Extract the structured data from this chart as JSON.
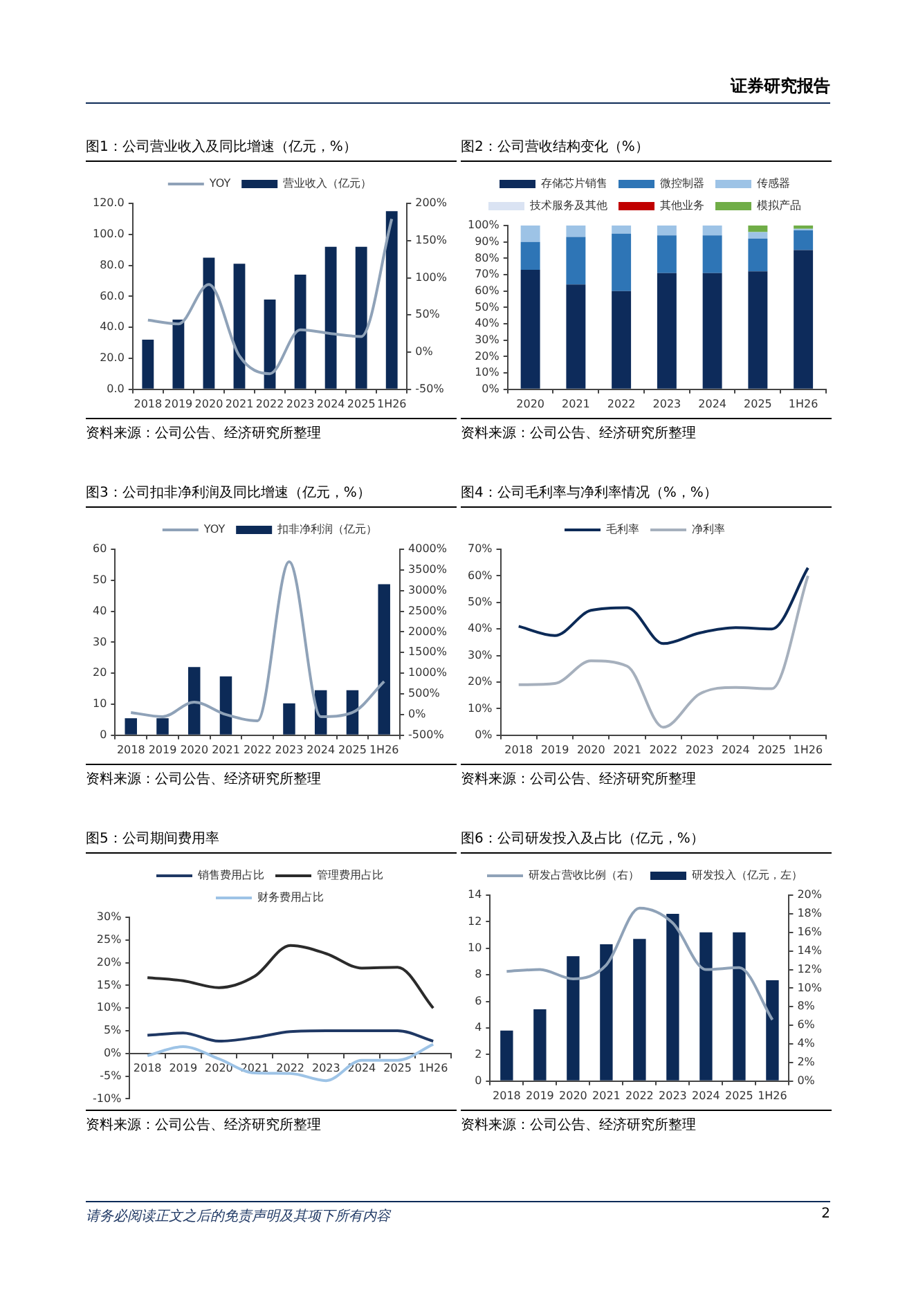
{
  "chart_data": [
    {
      "type": "bar",
      "title": "图1：公司营业收入及同比增速（亿元，%）",
      "annotations": [
        "资料来源：公司公告、经济研究所整理",
        "证券研究报告"
      ],
      "categories": [
        "2018",
        "2019",
        "2020",
        "2021",
        "2022",
        "2023",
        "2024",
        "2025",
        "1H26"
      ],
      "series": [
        {
          "name": "营业收入（亿元）",
          "color": "#0c2a57",
          "values": [
            32,
            45,
            85,
            81,
            58,
            74,
            92,
            92,
            115
          ]
        },
        {
          "name": "YOY",
          "type": "line",
          "axis": "y2",
          "color": "#8fa2b8",
          "values": [
            43,
            38,
            91,
            -5,
            -29,
            30,
            25,
            21,
            179
          ]
        }
      ],
      "ylim": [
        0,
        120
      ],
      "yticks": [
        {
          "value": 0,
          "label": "0.0"
        },
        {
          "value": 20,
          "label": "20.0"
        },
        {
          "value": 40,
          "label": "40.0"
        },
        {
          "value": 60,
          "label": "60.0"
        },
        {
          "value": 80,
          "label": "80.0"
        },
        {
          "value": 100,
          "label": "100.0"
        },
        {
          "value": 120,
          "label": "120.0"
        }
      ],
      "y2lim": [
        -50,
        200
      ],
      "y2ticks": [
        {
          "value": -50,
          "label": "-50%"
        },
        {
          "value": 0,
          "label": "0%"
        },
        {
          "value": 50,
          "label": "50%"
        },
        {
          "value": 100,
          "label": "100%"
        },
        {
          "value": 150,
          "label": "150%"
        },
        {
          "value": 200,
          "label": "200%"
        }
      ],
      "legend": "top",
      "grid": false,
      "marker": "none",
      "line_style": "solid"
    },
    {
      "type": "bar",
      "title": "图2：公司营收结构变化（%）",
      "annotations": [
        "资料来源：公司公告、经济研究所整理"
      ],
      "categories": [
        "2020",
        "2021",
        "2022",
        "2023",
        "2024",
        "2025",
        "1H26"
      ],
      "stacked": true,
      "series": [
        {
          "name": "存储芯片销售",
          "color": "#0d2b5b",
          "values": [
            73,
            64,
            60,
            71,
            71,
            72,
            85
          ]
        },
        {
          "name": "微控制器",
          "color": "#2e75b6",
          "values": [
            17,
            29,
            35,
            23,
            23,
            20,
            12
          ]
        },
        {
          "name": "传感器",
          "color": "#9dc3e6",
          "values": [
            10,
            7,
            5,
            6,
            6,
            4,
            1
          ]
        },
        {
          "name": "技术服务及其他",
          "color": "#dae3f3",
          "values": [
            0,
            0,
            0,
            0,
            0,
            0,
            0
          ]
        },
        {
          "name": "其他业务",
          "color": "#c00000",
          "values": [
            0,
            0,
            0,
            0,
            0,
            0,
            0
          ]
        },
        {
          "name": "模拟产品",
          "color": "#70ad47",
          "values": [
            0,
            0,
            0,
            0,
            0,
            4,
            2
          ]
        }
      ],
      "ylim": [
        0,
        100
      ],
      "yticks": [
        {
          "value": 0,
          "label": "0%"
        },
        {
          "value": 10,
          "label": "10%"
        },
        {
          "value": 20,
          "label": "20%"
        },
        {
          "value": 30,
          "label": "30%"
        },
        {
          "value": 40,
          "label": "40%"
        },
        {
          "value": 50,
          "label": "50%"
        },
        {
          "value": 60,
          "label": "60%"
        },
        {
          "value": 70,
          "label": "70%"
        },
        {
          "value": 80,
          "label": "80%"
        },
        {
          "value": 90,
          "label": "90%"
        },
        {
          "value": 100,
          "label": "100%"
        }
      ],
      "legend": "top",
      "grid": false
    },
    {
      "type": "bar",
      "title": "图3：公司扣非净利润及同比增速（亿元，%）",
      "annotations": [
        "资料来源：公司公告、经济研究所整理"
      ],
      "categories": [
        "2018",
        "2019",
        "2020",
        "2021",
        "2022",
        "2023",
        "2024",
        "2025",
        "1H26"
      ],
      "series": [
        {
          "name": "扣非净利润（亿元）",
          "color": "#0c2a57",
          "values": [
            5.5,
            5.5,
            22,
            19,
            null,
            10.3,
            14.5,
            14.5,
            48.7
          ]
        },
        {
          "name": "YOY",
          "type": "line",
          "axis": "y2",
          "color": "#8fa2b8",
          "values": [
            50,
            -50,
            300,
            0,
            -150,
            3700,
            -50,
            50,
            800
          ]
        }
      ],
      "ylim": [
        0,
        60
      ],
      "yticks": [
        0,
        10,
        20,
        30,
        40,
        50,
        60
      ],
      "y2lim": [
        -500,
        4000
      ],
      "y2ticks": [
        {
          "value": -500,
          "label": "-500%"
        },
        {
          "value": 0,
          "label": "0%"
        },
        {
          "value": 500,
          "label": "500%"
        },
        {
          "value": 1000,
          "label": "1000%"
        },
        {
          "value": 1500,
          "label": "1500%"
        },
        {
          "value": 2000,
          "label": "2000%"
        },
        {
          "value": 2500,
          "label": "2500%"
        },
        {
          "value": 3000,
          "label": "3000%"
        },
        {
          "value": 3500,
          "label": "3500%"
        },
        {
          "value": 4000,
          "label": "4000%"
        }
      ],
      "legend": "top",
      "grid": false,
      "marker": "none",
      "line_style": "solid"
    },
    {
      "type": "line",
      "title": "图4：公司毛利率与净利率情况（%，%）",
      "annotations": [
        "资料来源：公司公告、经济研究所整理"
      ],
      "categories": [
        "2018",
        "2019",
        "2020",
        "2021",
        "2022",
        "2023",
        "2024",
        "2025",
        "1H26"
      ],
      "series": [
        {
          "name": "毛利率",
          "color": "#0c2a57",
          "values": [
            41,
            37.5,
            47,
            48,
            34.5,
            38.5,
            40.5,
            40,
            63
          ]
        },
        {
          "name": "净利率",
          "color": "#a6b0bd",
          "values": [
            19,
            19.5,
            28,
            26,
            3,
            15.5,
            18,
            17.5,
            60
          ]
        }
      ],
      "ylim": [
        0,
        70
      ],
      "yticks": [
        {
          "value": 0,
          "label": "0%"
        },
        {
          "value": 10,
          "label": "10%"
        },
        {
          "value": 20,
          "label": "20%"
        },
        {
          "value": 30,
          "label": "30%"
        },
        {
          "value": 40,
          "label": "40%"
        },
        {
          "value": 50,
          "label": "50%"
        },
        {
          "value": 60,
          "label": "60%"
        },
        {
          "value": 70,
          "label": "70%"
        }
      ],
      "legend": "top",
      "grid": false,
      "marker": "none",
      "line_style": "solid"
    },
    {
      "type": "line",
      "title": "图5：公司期间费用率",
      "annotations": [
        "资料来源：公司公告、经济研究所整理"
      ],
      "categories": [
        "2018",
        "2019",
        "2020",
        "2021",
        "2022",
        "2023",
        "2024",
        "2025",
        "1H26"
      ],
      "series": [
        {
          "name": "销售费用占比",
          "color": "#1f3864",
          "values": [
            4,
            4.5,
            2.7,
            3.5,
            4.8,
            5,
            5,
            5,
            2.7
          ]
        },
        {
          "name": "管理费用占比",
          "color": "#2b2b2b",
          "values": [
            16.7,
            16,
            14.5,
            17,
            23.8,
            22,
            18.8,
            19,
            10
          ]
        },
        {
          "name": "财务费用占比",
          "color": "#9dc3e6",
          "values": [
            -0.5,
            1.5,
            -1.2,
            -4.3,
            -4.4,
            -6,
            -1.5,
            -1.5,
            2
          ]
        }
      ],
      "ylim": [
        -10,
        30
      ],
      "yticks": [
        {
          "value": -10,
          "label": "-10%"
        },
        {
          "value": -5,
          "label": "-5%"
        },
        {
          "value": 0,
          "label": "0%"
        },
        {
          "value": 5,
          "label": "5%"
        },
        {
          "value": 10,
          "label": "10%"
        },
        {
          "value": 15,
          "label": "15%"
        },
        {
          "value": 20,
          "label": "20%"
        },
        {
          "value": 25,
          "label": "25%"
        },
        {
          "value": 30,
          "label": "30%"
        }
      ],
      "legend": "top",
      "grid": false,
      "marker": "none",
      "line_style": "solid"
    },
    {
      "type": "bar",
      "title": "图6：公司研发投入及占比（亿元，%）",
      "annotations": [
        "资料来源：公司公告、经济研究所整理",
        "请务必阅读正文之后的免责声明及其项下所有内容",
        "2"
      ],
      "categories": [
        "2018",
        "2019",
        "2020",
        "2021",
        "2022",
        "2023",
        "2024",
        "2025",
        "1H26"
      ],
      "series": [
        {
          "name": "研发投入（亿元，左）",
          "color": "#0c2a57",
          "values": [
            3.8,
            5.4,
            9.4,
            10.3,
            10.7,
            12.6,
            11.2,
            11.2,
            7.6
          ]
        },
        {
          "name": "研发占营收比例（右）",
          "type": "line",
          "axis": "y2",
          "color": "#8fa2b8",
          "values": [
            11.8,
            12,
            11,
            12.5,
            18.6,
            17,
            12,
            12.2,
            6.6
          ]
        }
      ],
      "ylim": [
        0,
        14
      ],
      "yticks": [
        0,
        2,
        4,
        6,
        8,
        10,
        12,
        14
      ],
      "y2lim": [
        0,
        20
      ],
      "y2ticks": [
        {
          "value": 0,
          "label": "0%"
        },
        {
          "value": 2,
          "label": "2%"
        },
        {
          "value": 4,
          "label": "4%"
        },
        {
          "value": 6,
          "label": "6%"
        },
        {
          "value": 8,
          "label": "8%"
        },
        {
          "value": 10,
          "label": "10%"
        },
        {
          "value": 12,
          "label": "12%"
        },
        {
          "value": 14,
          "label": "14%"
        },
        {
          "value": 16,
          "label": "16%"
        },
        {
          "value": 18,
          "label": "18%"
        },
        {
          "value": 20,
          "label": "20%"
        }
      ],
      "legend": "top",
      "grid": false,
      "marker": "none",
      "line_style": "solid"
    }
  ]
}
